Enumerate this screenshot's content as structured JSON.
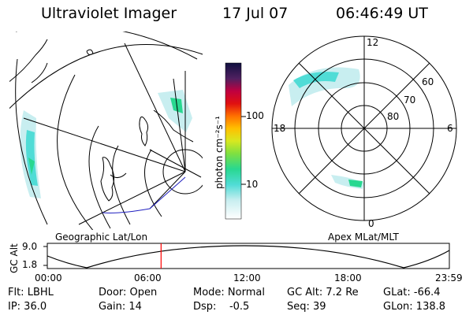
{
  "header": {
    "title": "Ultraviolet Imager",
    "date": "17 Jul 07",
    "time": "06:46:49 UT"
  },
  "left_panel": {
    "label": "Geographic Lat/Lon"
  },
  "right_panel": {
    "label": "Apex MLat/MLT",
    "mlt_labels": {
      "top": "12",
      "bottom": "0",
      "left": "18",
      "right": "6"
    },
    "lat_labels": [
      "60",
      "70",
      "80"
    ]
  },
  "colorbar": {
    "unit_label": "photon cm⁻²s⁻¹",
    "tick_labels": [
      "100",
      "10"
    ]
  },
  "timeline": {
    "axis_label": "GC Alt",
    "y_ticks": [
      "9.0",
      "1.8"
    ],
    "x_ticks": [
      "00:00",
      "06:00",
      "12:00",
      "18:00",
      "23:59"
    ],
    "current_time_fraction": 0.283
  },
  "status": {
    "row1": [
      {
        "key": "flt",
        "text": "Flt: LBHL"
      },
      {
        "key": "door",
        "text": "Door: Open"
      },
      {
        "key": "mode",
        "text": "Mode: Normal"
      },
      {
        "key": "gcalt",
        "text": "GC Alt: 7.2 Re"
      },
      {
        "key": "glat",
        "text": "GLat: -66.4"
      }
    ],
    "row2": [
      {
        "key": "ip",
        "text": "IP: 36.0"
      },
      {
        "key": "gain",
        "text": "Gain: 14"
      },
      {
        "key": "dsp",
        "text": "Dsp:    -0.5"
      },
      {
        "key": "seq",
        "text": "Seq: 39"
      },
      {
        "key": "glon",
        "text": "GLon: 138.8"
      }
    ]
  },
  "colors": {
    "aurora_light": "#c8eef0",
    "aurora_cyan": "#50dcd6",
    "aurora_green": "#28d890",
    "timeline_red": "#ff0000",
    "coast_blue": "#2020c0"
  }
}
